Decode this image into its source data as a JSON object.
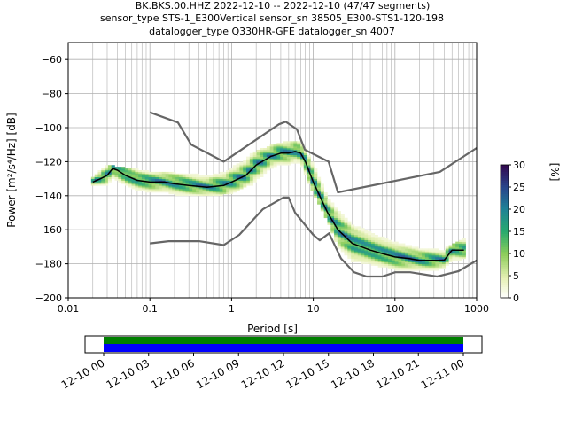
{
  "title_lines": [
    "BK.BKS.00.HHZ   2022-12-10 -- 2022-12-10  (47/47 segments)",
    "sensor_type STS-1_E300Vertical sensor_sn 38505_E300-STS1-120-198",
    "datalogger_type Q330HR-GFE datalogger_sn 4007"
  ],
  "chart_data": {
    "type": "heatmap",
    "xlabel": "Period [s]",
    "ylabel": "Power [m²/s⁴/Hz] [dB]",
    "xscale": "log",
    "xlim": [
      0.01,
      1000
    ],
    "ylim": [
      -200,
      -50
    ],
    "x_ticks": [
      0.01,
      0.1,
      1,
      10,
      100,
      1000
    ],
    "x_tick_labels": [
      "0.01",
      "0.1",
      "1",
      "10",
      "100",
      "1000"
    ],
    "y_ticks": [
      -200,
      -180,
      -160,
      -140,
      -120,
      -100,
      -80,
      -60
    ],
    "y_tick_labels": [
      "−200",
      "−180",
      "−160",
      "−140",
      "−120",
      "−100",
      "−80",
      "−60"
    ],
    "grid": true,
    "colorbar": {
      "label": "[%]",
      "range": [
        0,
        30
      ],
      "ticks": [
        0,
        5,
        10,
        15,
        20,
        25,
        30
      ],
      "tick_labels": [
        "0",
        "5",
        "10",
        "15",
        "20",
        "25",
        "30"
      ]
    },
    "noise_model_high": {
      "color": "#666666",
      "x": [
        0.1,
        0.22,
        0.32,
        0.8,
        3.8,
        4.6,
        6.3,
        7.9,
        15.4,
        20,
        354.8,
        1000
      ],
      "y": [
        -91,
        -97,
        -110,
        -120,
        -98,
        -96.5,
        -101,
        -113,
        -120,
        -138,
        -126,
        -112
      ]
    },
    "noise_model_low": {
      "color": "#666666",
      "x": [
        0.1,
        0.17,
        0.4,
        0.8,
        1.24,
        2.4,
        4.3,
        5,
        6,
        10,
        12,
        15.6,
        21.9,
        31.6,
        45,
        70,
        101,
        154,
        328,
        600,
        1000
      ],
      "y": [
        -168,
        -166.7,
        -166.7,
        -169,
        -163,
        -148,
        -141.1,
        -141.1,
        -150,
        -163,
        -166.2,
        -162.1,
        -177,
        -185,
        -187.5,
        -187.5,
        -185,
        -185,
        -187.5,
        -184.4,
        -178
      ]
    },
    "mean_psd": {
      "color": "#000000",
      "x": [
        0.02,
        0.025,
        0.03,
        0.035,
        0.04,
        0.05,
        0.07,
        0.1,
        0.15,
        0.2,
        0.3,
        0.5,
        0.8,
        1,
        1.5,
        2,
        3,
        4,
        5,
        6,
        7,
        8,
        10,
        15,
        20,
        30,
        50,
        70,
        100,
        150,
        200,
        300,
        400,
        500,
        600,
        700
      ],
      "y": [
        -132,
        -130,
        -128,
        -124,
        -125,
        -128,
        -131,
        -132,
        -132,
        -133,
        -134,
        -135,
        -134,
        -132,
        -128,
        -122,
        -117,
        -115,
        -115,
        -114,
        -115,
        -120,
        -132,
        -150,
        -160,
        -168,
        -172,
        -174,
        -176,
        -177,
        -178,
        -178,
        -178,
        -172,
        -172,
        -172
      ]
    },
    "spread": {
      "x": [
        0.02,
        0.03,
        0.05,
        0.1,
        0.2,
        0.5,
        0.8,
        1,
        2,
        3,
        5,
        7,
        10,
        15,
        20,
        30,
        50,
        100,
        200,
        400,
        700
      ],
      "hi": [
        -130,
        -123,
        -125,
        -127,
        -128,
        -129,
        -126,
        -124,
        -115,
        -112,
        -109,
        -110,
        -120,
        -140,
        -150,
        -158,
        -163,
        -168,
        -172,
        -173,
        -166
      ],
      "lo": [
        -135,
        -134,
        -136,
        -138,
        -140,
        -140,
        -139,
        -138,
        -132,
        -125,
        -122,
        -122,
        -138,
        -155,
        -170,
        -178,
        -180,
        -183,
        -184,
        -183,
        -177
      ]
    },
    "time_axis": {
      "tick_labels": [
        "12-10 00",
        "12-10 03",
        "12-10 06",
        "12-10 09",
        "12-10 12",
        "12-10 15",
        "12-10 18",
        "12-10 21",
        "12-11 00"
      ],
      "coverage_colors": [
        "#008000",
        "#0000ff"
      ],
      "coverage_fraction": 1.0
    }
  }
}
